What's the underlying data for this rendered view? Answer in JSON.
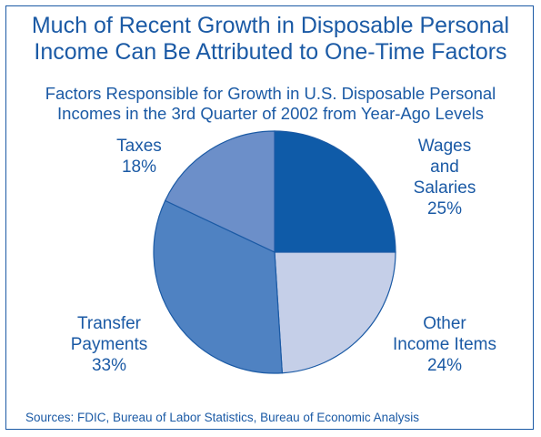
{
  "chart_data": {
    "type": "pie",
    "title_lines": [
      "Much of Recent Growth in Disposable Personal",
      "Income Can Be Attributed to One-Time Factors"
    ],
    "subtitle_lines": [
      "Factors Responsible for Growth in U.S. Disposable Personal",
      "Incomes in the 3rd Quarter of 2002 from Year-Ago Levels"
    ],
    "slices": [
      {
        "label_lines": [
          "Wages",
          "and",
          "Salaries"
        ],
        "value": 25,
        "value_label": "25%",
        "color": "#0f5ba8"
      },
      {
        "label_lines": [
          "Other",
          "Income Items"
        ],
        "value": 24,
        "value_label": "24%",
        "color": "#c5cfe8"
      },
      {
        "label_lines": [
          "Transfer",
          "Payments"
        ],
        "value": 33,
        "value_label": "33%",
        "color": "#4f82c2"
      },
      {
        "label_lines": [
          "Taxes"
        ],
        "value": 18,
        "value_label": "18%",
        "color": "#6c8fc9"
      }
    ],
    "source": "Sources: FDIC, Bureau of Labor Statistics, Bureau of Economic Analysis"
  },
  "colors": {
    "accent": "#1b5aa5",
    "slice_border": "#1b5aa5"
  }
}
